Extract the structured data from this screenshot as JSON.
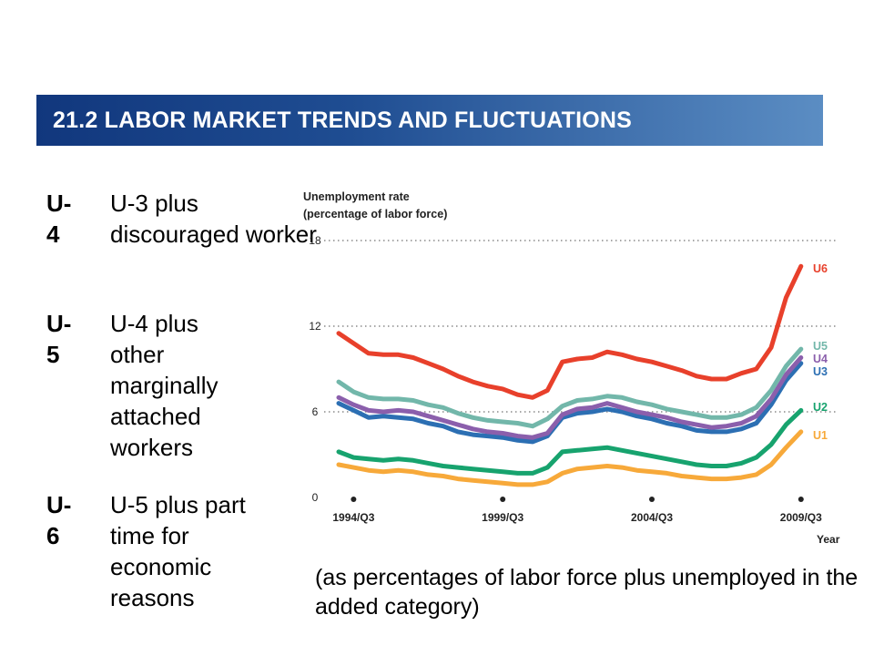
{
  "header": {
    "title": "21.2  LABOR MARKET TRENDS AND FLUCTUATIONS"
  },
  "definitions": [
    {
      "code": "U-4",
      "text": "U-3 plus discouraged worker"
    },
    {
      "code": "U-5",
      "text": "U-4 plus other marginally attached workers"
    },
    {
      "code": "U-6",
      "text": "U-5 plus part time for economic reasons"
    }
  ],
  "caption": "(as percentages of labor force plus unemployed in the added category)",
  "chart_data": {
    "type": "line",
    "ylabel_line1": "Unemployment rate",
    "ylabel_line2": "(percentage of labor force)",
    "xlabel": "Year",
    "ylim": [
      0,
      18
    ],
    "yticks": [
      0,
      6,
      12,
      18
    ],
    "xlim": [
      1994.0,
      2009.75
    ],
    "xticks": [
      {
        "x": 1994.5,
        "label": "1994/Q3"
      },
      {
        "x": 1999.5,
        "label": "1999/Q3"
      },
      {
        "x": 2004.5,
        "label": "2004/Q3"
      },
      {
        "x": 2009.5,
        "label": "2009/Q3"
      }
    ],
    "grid": "dotted-horizontal",
    "x": [
      1994.0,
      1994.5,
      1995.0,
      1995.5,
      1996.0,
      1996.5,
      1997.0,
      1997.5,
      1998.0,
      1998.5,
      1999.0,
      1999.5,
      2000.0,
      2000.5,
      2001.0,
      2001.5,
      2002.0,
      2002.5,
      2003.0,
      2003.5,
      2004.0,
      2004.5,
      2005.0,
      2005.5,
      2006.0,
      2006.5,
      2007.0,
      2007.5,
      2008.0,
      2008.5,
      2009.0,
      2009.5
    ],
    "series": [
      {
        "name": "U6",
        "color": "#e8402b",
        "values": [
          11.5,
          10.8,
          10.1,
          10.0,
          10.0,
          9.8,
          9.4,
          9.0,
          8.5,
          8.1,
          7.8,
          7.6,
          7.2,
          7.0,
          7.5,
          9.5,
          9.7,
          9.8,
          10.2,
          10.0,
          9.7,
          9.5,
          9.2,
          8.9,
          8.5,
          8.3,
          8.3,
          8.7,
          9.0,
          10.5,
          14.0,
          16.2
        ]
      },
      {
        "name": "U5",
        "color": "#72b7aa",
        "values": [
          8.1,
          7.4,
          7.0,
          6.9,
          6.9,
          6.8,
          6.5,
          6.3,
          5.9,
          5.6,
          5.4,
          5.3,
          5.2,
          5.0,
          5.5,
          6.4,
          6.8,
          6.9,
          7.1,
          7.0,
          6.7,
          6.5,
          6.2,
          6.0,
          5.8,
          5.6,
          5.6,
          5.8,
          6.3,
          7.5,
          9.2,
          10.4
        ]
      },
      {
        "name": "U4",
        "color": "#8b5fac",
        "values": [
          7.0,
          6.5,
          6.1,
          6.0,
          6.1,
          6.0,
          5.7,
          5.4,
          5.1,
          4.8,
          4.6,
          4.5,
          4.3,
          4.2,
          4.5,
          5.8,
          6.2,
          6.3,
          6.6,
          6.3,
          6.0,
          5.8,
          5.6,
          5.3,
          5.1,
          4.9,
          5.0,
          5.2,
          5.7,
          6.9,
          8.6,
          9.8
        ]
      },
      {
        "name": "U3",
        "color": "#2c6fb3",
        "values": [
          6.6,
          6.1,
          5.6,
          5.7,
          5.6,
          5.5,
          5.2,
          5.0,
          4.6,
          4.4,
          4.3,
          4.2,
          4.0,
          3.9,
          4.3,
          5.6,
          5.9,
          6.0,
          6.2,
          6.0,
          5.7,
          5.5,
          5.2,
          5.0,
          4.7,
          4.6,
          4.6,
          4.8,
          5.2,
          6.5,
          8.2,
          9.4
        ]
      },
      {
        "name": "U2",
        "color": "#17a36e",
        "values": [
          3.2,
          2.8,
          2.7,
          2.6,
          2.7,
          2.6,
          2.4,
          2.2,
          2.1,
          2.0,
          1.9,
          1.8,
          1.7,
          1.7,
          2.1,
          3.2,
          3.3,
          3.4,
          3.5,
          3.3,
          3.1,
          2.9,
          2.7,
          2.5,
          2.3,
          2.2,
          2.2,
          2.4,
          2.8,
          3.7,
          5.1,
          6.1
        ]
      },
      {
        "name": "U1",
        "color": "#f7a93a",
        "values": [
          2.3,
          2.1,
          1.9,
          1.8,
          1.9,
          1.8,
          1.6,
          1.5,
          1.3,
          1.2,
          1.1,
          1.0,
          0.9,
          0.9,
          1.1,
          1.7,
          2.0,
          2.1,
          2.2,
          2.1,
          1.9,
          1.8,
          1.7,
          1.5,
          1.4,
          1.3,
          1.3,
          1.4,
          1.6,
          2.3,
          3.5,
          4.6
        ]
      }
    ]
  }
}
